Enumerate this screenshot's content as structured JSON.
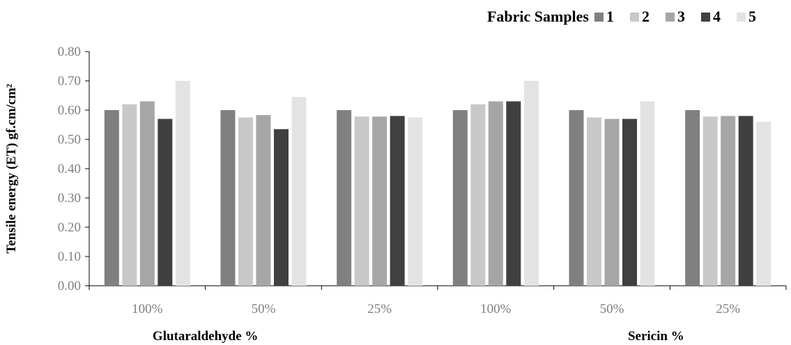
{
  "chart_data": {
    "type": "bar",
    "ylabel": "Tensile energy (ET) gf.cm/cm²",
    "ylim": [
      0,
      0.8
    ],
    "yticks": [
      "0.00",
      "0.10",
      "0.20",
      "0.30",
      "0.40",
      "0.50",
      "0.60",
      "0.70",
      "0.80"
    ],
    "categories": [
      "100%",
      "50%",
      "25%",
      "100%",
      "50%",
      "25%"
    ],
    "group_labels": [
      "Glutaraldehyde %",
      "Sericin %"
    ],
    "legend": {
      "title": "Fabric Samples",
      "placement": "top-right"
    },
    "series": [
      {
        "name": "1",
        "color": "#808080",
        "values": [
          0.6,
          0.6,
          0.6,
          0.6,
          0.6,
          0.6
        ]
      },
      {
        "name": "2",
        "color": "#c8c8c8",
        "values": [
          0.62,
          0.575,
          0.578,
          0.62,
          0.575,
          0.578
        ]
      },
      {
        "name": "3",
        "color": "#a6a6a6",
        "values": [
          0.63,
          0.583,
          0.578,
          0.63,
          0.57,
          0.58
        ]
      },
      {
        "name": "4",
        "color": "#404040",
        "values": [
          0.57,
          0.535,
          0.58,
          0.63,
          0.57,
          0.58
        ]
      },
      {
        "name": "5",
        "color": "#e3e3e3",
        "values": [
          0.7,
          0.645,
          0.575,
          0.7,
          0.63,
          0.56
        ]
      }
    ],
    "grid": false
  }
}
